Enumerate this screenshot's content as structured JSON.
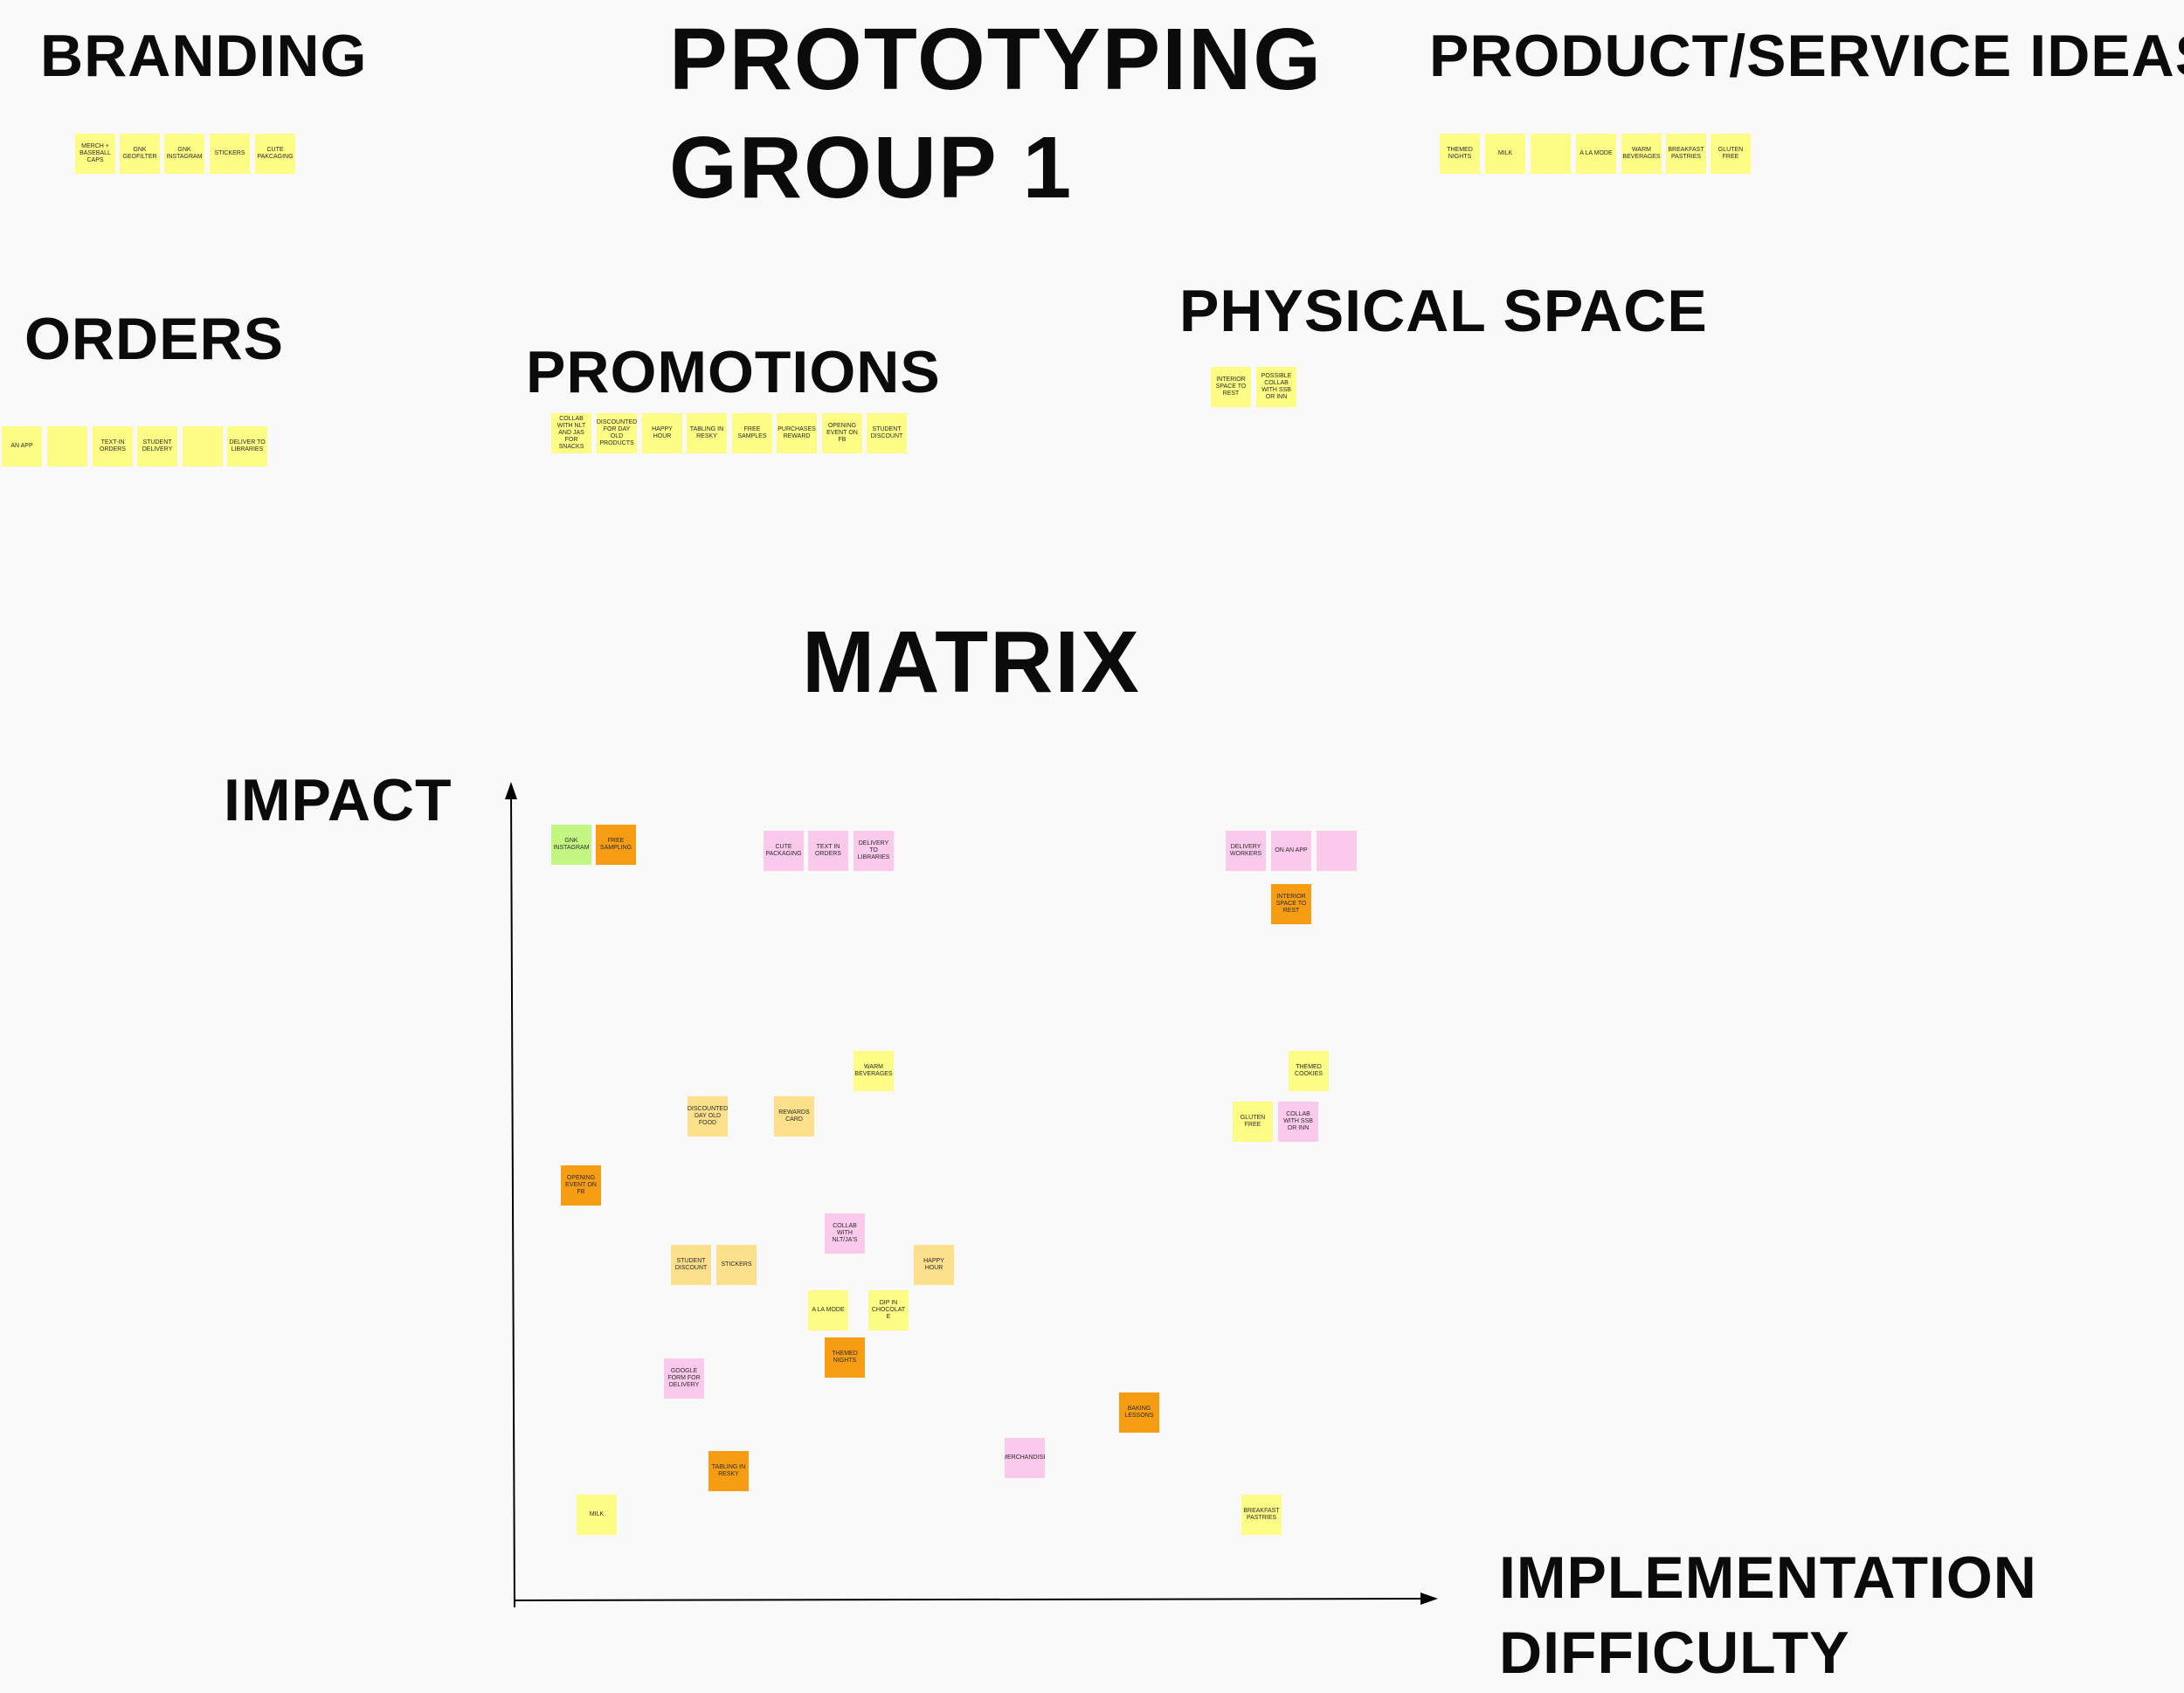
{
  "headings": {
    "title_line1": "PROTOTYPING",
    "title_line2": "GROUP 1",
    "branding": "BRANDING",
    "product_service": "PRODUCT/SERVICE IDEAS",
    "orders": "ORDERS",
    "promotions": "PROMOTIONS",
    "physical_space": "PHYSICAL SPACE",
    "matrix": "MATRIX",
    "impact": "IMPACT",
    "difficulty_line1": "IMPLEMENTATION",
    "difficulty_line2": "DIFFICULTY"
  },
  "colors": {
    "yellow": "#fdfd85",
    "pink": "#fbc9ec",
    "orange": "#f79d14",
    "green": "#c3f782",
    "peach": "#fde08b",
    "text": "#0b0b0b"
  },
  "groups": {
    "branding": [
      "MERCH + BASEBALL CAPS",
      "GNK GEOFILTER",
      "GNK INSTAGRAM",
      "STICKERS",
      "CUTE PAKCAGING"
    ],
    "product_service": [
      "THEMED NIGHTS",
      "MILK",
      "",
      "A LA MODE",
      "WARM BEVERAGES",
      "BREAKFAST PASTRIES",
      "GLUTEN FREE"
    ],
    "orders": [
      "AN APP",
      "",
      "TEXT-IN ORDERS",
      "STUDENT DELIVERY",
      "",
      "DELIVER TO LIBRARIES"
    ],
    "promotions": [
      "COLLAB WITH NLT AND JAS FOR SNACKS",
      "DISCOUNTED FOR DAY OLD PRODUCTS",
      "HAPPY HOUR",
      "TABLING IN RESKY",
      "FREE SAMPLES",
      "PURCHASES REWARD",
      "OPENING EVENT ON FB",
      "STUDENT DISCOUNT"
    ],
    "physical_space": [
      "INTERIOR SPACE TO REST",
      "POSSIBLE COLLAB WITH SSB OR INN"
    ]
  },
  "matrix_notes": [
    {
      "label": "GNK INSTAGRAM",
      "color": "green"
    },
    {
      "label": "FREE SAMPLING",
      "color": "orange"
    },
    {
      "label": "CUTE PACKAGING",
      "color": "pink"
    },
    {
      "label": "TEXT IN ORDERS",
      "color": "pink"
    },
    {
      "label": "DELIVERY TO LIBRARIES",
      "color": "pink"
    },
    {
      "label": "DELIVERY WORKERS",
      "color": "pink"
    },
    {
      "label": "ON AN APP",
      "color": "pink"
    },
    {
      "label": "",
      "color": "pink"
    },
    {
      "label": "INTERIOR SPACE TO REST",
      "color": "orange"
    },
    {
      "label": "WARM BEVERAGES",
      "color": "yellow"
    },
    {
      "label": "THEMED COOKIES",
      "color": "yellow"
    },
    {
      "label": "DISCOUNTED DAY OLD FOOD",
      "color": "peach"
    },
    {
      "label": "REWARDS CARD",
      "color": "peach"
    },
    {
      "label": "GLUTEN FREE",
      "color": "yellow"
    },
    {
      "label": "COLLAB WITH SSB OR INN",
      "color": "pink"
    },
    {
      "label": "OPENING EVENT ON FB",
      "color": "orange"
    },
    {
      "label": "COLLAB WITH NLT/JA'S",
      "color": "pink"
    },
    {
      "label": "STUDENT DISCOUNT",
      "color": "peach"
    },
    {
      "label": "STICKERS",
      "color": "peach"
    },
    {
      "label": "HAPPY HOUR",
      "color": "peach"
    },
    {
      "label": "A LA MODE",
      "color": "yellow"
    },
    {
      "label": "DIP IN CHOCOLAT E",
      "color": "yellow"
    },
    {
      "label": "THEMED NIGHTS",
      "color": "orange"
    },
    {
      "label": "GOOGLE FORM FOR DELIVERY",
      "color": "pink"
    },
    {
      "label": "BAKING LESSONS",
      "color": "orange"
    },
    {
      "label": "MERCHANDISE",
      "color": "pink"
    },
    {
      "label": "TABLING IN RESKY",
      "color": "orange"
    },
    {
      "label": "MILK",
      "color": "yellow"
    },
    {
      "label": "BREAKFAST PASTRIES",
      "color": "yellow"
    }
  ]
}
